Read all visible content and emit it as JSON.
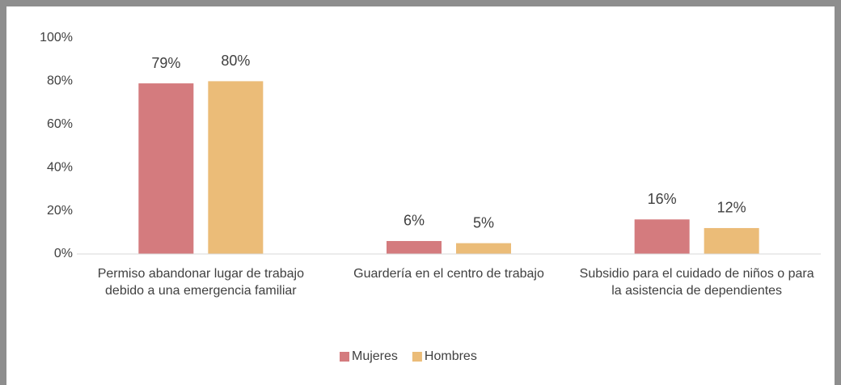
{
  "chart_data": {
    "type": "bar",
    "categories": [
      "Permiso abandonar lugar de trabajo debido a una emergencia familiar",
      "Guardería en el centro de trabajo",
      "Subsidio para el cuidado de niños o para la asistencia de dependientes"
    ],
    "series": [
      {
        "name": "Mujeres",
        "color": "#d47b7e",
        "values": [
          79,
          6,
          16
        ],
        "value_labels": [
          "79%",
          "6%",
          "16%"
        ]
      },
      {
        "name": "Hombres",
        "color": "#ebbc78",
        "values": [
          80,
          5,
          12
        ],
        "value_labels": [
          "80%",
          "5%",
          "12%"
        ]
      }
    ],
    "ylim": [
      0,
      100
    ],
    "yticks": [
      {
        "value": 0,
        "label": "0%"
      },
      {
        "value": 20,
        "label": "20%"
      },
      {
        "value": 40,
        "label": "40%"
      },
      {
        "value": 60,
        "label": "60%"
      },
      {
        "value": 80,
        "label": "80%"
      },
      {
        "value": 100,
        "label": "100%"
      }
    ],
    "legend": "bottom"
  }
}
